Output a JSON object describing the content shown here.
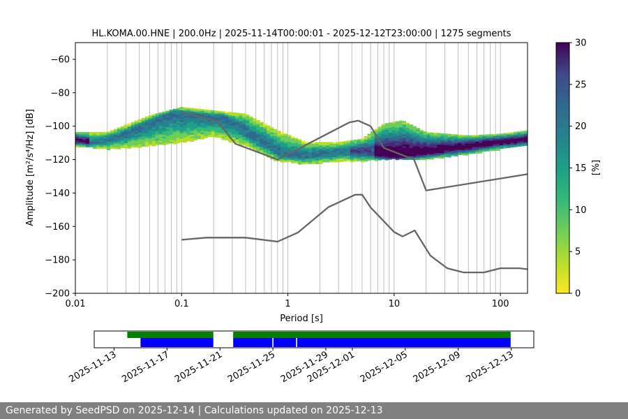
{
  "chart_data": [
    {
      "type": "heatmap",
      "title": "HL.KOMA.00.HNE | 200.0Hz | 2025-11-14T00:00:01 - 2025-12-12T23:00:00 | 1275 segments",
      "xlabel": "Period [s]",
      "ylabel": "Amplitude [m²/s⁴/Hz] [dB]",
      "xscale": "log",
      "xlim": [
        0.01,
        180
      ],
      "ylim": [
        -200,
        -50
      ],
      "x_ticks": [
        0.01,
        0.1,
        1,
        10,
        100
      ],
      "x_tick_labels": [
        "0.01",
        "0.1",
        "1",
        "10",
        "100"
      ],
      "y_ticks": [
        -200,
        -180,
        -160,
        -140,
        -120,
        -100,
        -80,
        -60
      ],
      "y_tick_labels": [
        "−200",
        "−180",
        "−160",
        "−140",
        "−120",
        "−100",
        "−80",
        "−60"
      ],
      "grid": "x-minor-log",
      "colorbar": {
        "label": "[%]",
        "range": [
          0,
          30
        ],
        "ticks": [
          0,
          5,
          10,
          15,
          20,
          25,
          30
        ],
        "colormap": "viridis-reversed"
      },
      "density_mode": {
        "x": [
          0.01,
          0.015,
          0.02,
          0.03,
          0.05,
          0.07,
          0.09,
          0.12,
          0.17,
          0.25,
          0.35,
          0.5,
          0.7,
          0.9,
          1.2,
          1.7,
          2.5,
          3.5,
          5,
          7,
          10,
          14,
          20,
          30,
          50,
          80,
          120,
          180
        ],
        "y": [
          -108,
          -110,
          -108,
          -104,
          -98,
          -94,
          -92,
          -93,
          -94,
          -95,
          -100,
          -107,
          -113,
          -117,
          -118,
          -117,
          -116,
          -115,
          -115,
          -117,
          -118,
          -117,
          -116,
          -114,
          -112,
          -110,
          -109,
          -108
        ]
      },
      "density_spread": {
        "x": [
          0.01,
          0.02,
          0.05,
          0.1,
          0.2,
          0.4,
          0.8,
          1.5,
          3,
          5,
          8,
          12,
          20,
          50,
          100,
          180
        ],
        "upper": [
          -104,
          -104,
          -94,
          -89,
          -91,
          -93,
          -103,
          -110,
          -110,
          -108,
          -99,
          -97,
          -104,
          -106,
          -105,
          -103
        ],
        "lower": [
          -112,
          -114,
          -112,
          -110,
          -106,
          -112,
          -121,
          -123,
          -121,
          -121,
          -120,
          -120,
          -120,
          -117,
          -114,
          -112
        ]
      },
      "series": [
        {
          "name": "",
          "color": "#666666",
          "x": [
            0.1,
            0.22,
            0.32,
            0.8,
            3.8,
            4.6,
            6.0,
            8.0,
            15.4,
            20.0,
            180
          ],
          "y": [
            -91.5,
            -97.4,
            -110.5,
            -120.0,
            -97.7,
            -96.7,
            -100.0,
            -113.0,
            -120.0,
            -138.5,
            -128.7
          ]
        },
        {
          "name": "",
          "color": "#666666",
          "x": [
            0.1,
            0.17,
            0.4,
            0.8,
            1.24,
            2.4,
            4.3,
            5.0,
            6.0,
            10.0,
            12.0,
            15.6,
            21.9,
            31.6,
            45.0,
            70.0,
            100.0,
            150.0,
            180.0
          ],
          "y": [
            -168.0,
            -166.7,
            -166.7,
            -169.1,
            -163.7,
            -148.5,
            -141.0,
            -141.0,
            -148.6,
            -163.3,
            -166.0,
            -162.4,
            -177.4,
            -185.0,
            -187.5,
            -187.5,
            -185.0,
            -185.0,
            -185.6
          ]
        }
      ]
    },
    {
      "type": "bar",
      "title": "",
      "xlabel": "",
      "ylabel": "",
      "x_tick_labels": [
        "2025-11-13",
        "2025-11-17",
        "2025-11-21",
        "2025-11-25",
        "2025-11-29",
        "2025-12-01",
        "2025-12-05",
        "2025-12-09",
        "2025-12-13"
      ],
      "series": [
        {
          "name": "",
          "color": "#008000",
          "intervals": [
            [
              "2025-11-14T00:00",
              "2025-11-20T12:00"
            ],
            [
              "2025-11-22T00:00",
              "2025-12-12T23:00"
            ]
          ]
        },
        {
          "name": "",
          "color": "#0000ff",
          "intervals": [
            [
              "2025-11-15T00:00",
              "2025-11-20T12:00"
            ],
            [
              "2025-11-22T00:00",
              "2025-11-24T23:00"
            ],
            [
              "2025-11-25T01:00",
              "2025-11-26T18:00"
            ],
            [
              "2025-11-26T20:00",
              "2025-12-12T23:00"
            ]
          ]
        }
      ]
    }
  ],
  "footer": {
    "text": "Generated by SeedPSD on 2025-12-14 | Calculations updated on 2025-12-13"
  }
}
